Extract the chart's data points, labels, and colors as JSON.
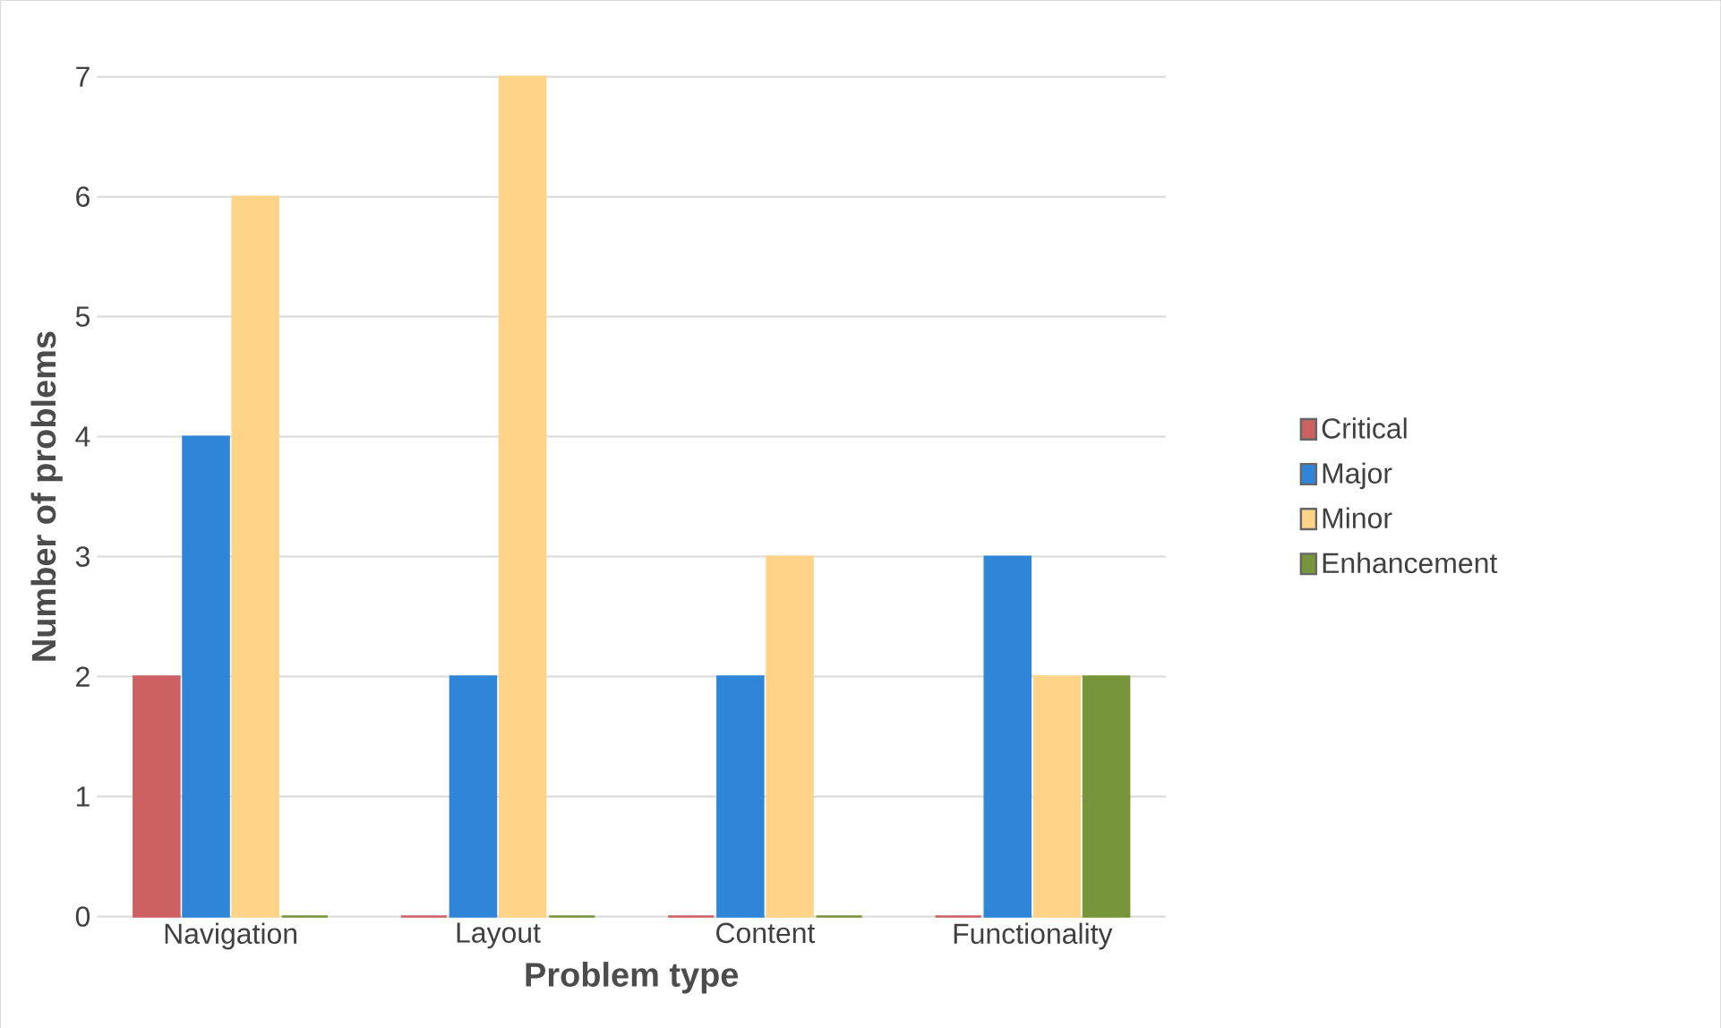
{
  "chart_data": {
    "type": "bar",
    "xlabel": "Problem type",
    "ylabel": "Number of problems",
    "categories": [
      "Navigation",
      "Layout",
      "Content",
      "Functionality"
    ],
    "series": [
      {
        "name": "Critical",
        "color": "#cd6060",
        "values": [
          2,
          0,
          0,
          0
        ]
      },
      {
        "name": "Major",
        "color": "#2f86d9",
        "values": [
          4,
          2,
          2,
          3
        ]
      },
      {
        "name": "Minor",
        "color": "#ffd488",
        "values": [
          6,
          7,
          3,
          2
        ]
      },
      {
        "name": "Enhancement",
        "color": "#77953a",
        "values": [
          0,
          0,
          0,
          2
        ]
      }
    ],
    "ylim": [
      0,
      7
    ],
    "yticks": [
      0,
      1,
      2,
      3,
      4,
      5,
      6,
      7
    ],
    "grid": "y",
    "legend": "right"
  }
}
